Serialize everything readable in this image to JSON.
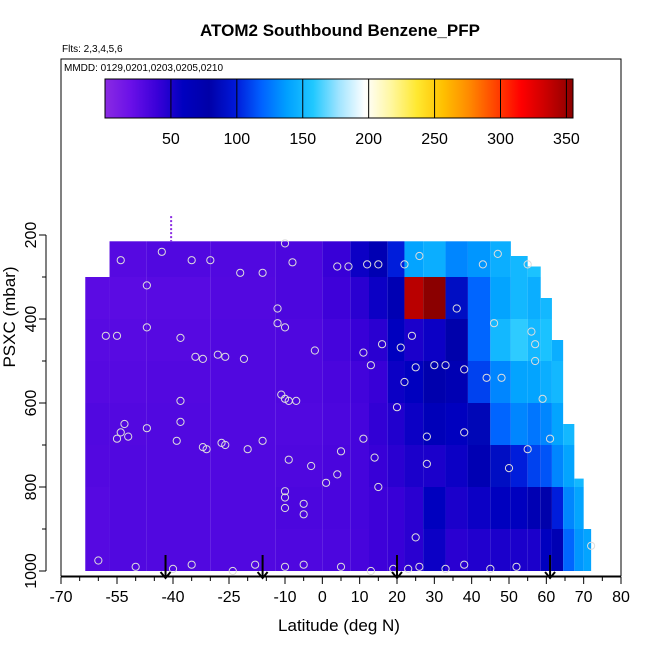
{
  "chart_data": {
    "type": "heatmap",
    "title": "ATOM2 Southbound Benzene_PFP",
    "notes": {
      "flights": "Flts: 2,3,4,5,6",
      "dates": "MMDD: 0129,0201,0203,0205,0210"
    },
    "xlabel": "Latitude (deg N)",
    "ylabel": "PSXC (mbar)",
    "xlim": [
      -70,
      80
    ],
    "ylim": [
      1000,
      200
    ],
    "x_ticks": [
      -70,
      -55,
      -40,
      -25,
      -10,
      0,
      10,
      20,
      30,
      40,
      50,
      60,
      70,
      80
    ],
    "x_minor_ticks": [
      -65,
      -60,
      -50,
      -45,
      -35,
      -30,
      -20,
      -15,
      -5,
      5,
      15,
      25,
      35,
      45,
      55,
      65,
      75
    ],
    "y_ticks": [
      200,
      400,
      600,
      800,
      1000
    ],
    "y_minor_ticks": [
      300,
      500,
      700,
      900
    ],
    "colorbar": {
      "range": [
        0,
        355
      ],
      "ticks": [
        50,
        100,
        150,
        200,
        250,
        300,
        350
      ],
      "colors": [
        "#8a2be2",
        "#6a10e8",
        "#3a00d8",
        "#0000c0",
        "#0000a8",
        "#0018d8",
        "#0060ff",
        "#00a0ff",
        "#20c8ff",
        "#a0e4ff",
        "#ffffff",
        "#fff7a0",
        "#ffe830",
        "#ffc000",
        "#ff8a00",
        "#ff4500",
        "#ff0000",
        "#c80000",
        "#8b0000"
      ]
    },
    "column_profiles": [
      {
        "lat": -67,
        "top": 1000,
        "values": [
          30
        ]
      },
      {
        "lat": -60,
        "top": 300,
        "values": [
          28,
          28,
          29,
          30,
          28,
          27,
          26,
          28,
          30
        ]
      },
      {
        "lat": -54,
        "top": 215,
        "values": [
          30,
          30,
          30,
          29,
          28,
          27,
          26,
          28,
          30
        ]
      },
      {
        "lat": -40,
        "top": 215,
        "values": [
          30,
          30,
          30,
          30,
          29,
          28,
          27,
          30,
          31
        ]
      },
      {
        "lat": -20,
        "top": 215,
        "values": [
          30,
          30,
          30,
          30,
          30,
          30,
          29,
          30,
          31
        ]
      },
      {
        "lat": -5,
        "top": 215,
        "values": [
          31,
          32,
          31,
          30,
          31,
          31,
          32,
          32,
          34
        ]
      },
      {
        "lat": 5,
        "top": 215,
        "values": [
          32,
          33,
          33,
          32,
          33,
          35,
          38,
          40,
          45
        ]
      },
      {
        "lat": 10,
        "top": 215,
        "values": [
          34,
          35,
          35,
          35,
          36,
          40,
          45,
          55,
          70
        ]
      },
      {
        "lat": 15,
        "top": 215,
        "values": [
          38,
          38,
          40,
          42,
          40,
          45,
          55,
          70,
          50
        ]
      },
      {
        "lat": 20,
        "top": 215,
        "values": [
          40,
          40,
          45,
          48,
          55,
          60,
          70,
          100,
          70
        ]
      },
      {
        "lat": 24,
        "top": 215,
        "values": [
          45,
          45,
          50,
          55,
          60,
          50,
          340,
          140,
          135
        ]
      },
      {
        "lat": 30,
        "top": 215,
        "values": [
          55,
          60,
          50,
          65,
          75,
          55,
          355,
          145,
          140
        ]
      },
      {
        "lat": 36,
        "top": 215,
        "values": [
          45,
          50,
          55,
          60,
          70,
          80,
          90,
          130,
          135
        ]
      },
      {
        "lat": 42,
        "top": 215,
        "values": [
          48,
          55,
          70,
          85,
          110,
          120,
          120,
          135,
          140
        ]
      },
      {
        "lat": 48,
        "top": 215,
        "values": [
          50,
          60,
          90,
          120,
          130,
          150,
          140,
          145,
          150
        ]
      },
      {
        "lat": 53,
        "top": 250,
        "values": [
          50,
          60,
          100,
          130,
          140,
          160,
          150,
          150,
          160
        ]
      },
      {
        "lat": 57,
        "top": 275,
        "values": [
          50,
          70,
          110,
          125,
          140,
          150,
          145,
          155,
          170
        ]
      },
      {
        "lat": 60,
        "top": 350,
        "values": [
          60,
          80,
          115,
          130,
          145,
          155,
          150,
          160,
          170
        ]
      },
      {
        "lat": 63,
        "top": 450,
        "values": [
          70,
          100,
          130,
          140,
          150,
          145,
          160,
          165
        ]
      },
      {
        "lat": 66,
        "top": 650,
        "values": [
          120,
          130,
          140,
          150,
          160
        ]
      },
      {
        "lat": 69,
        "top": 780,
        "values": [
          135,
          140,
          150
        ]
      },
      {
        "lat": 71,
        "top": 900,
        "values": [
          140,
          150
        ]
      }
    ],
    "sample_points_lat_p": [
      [
        -54,
        260
      ],
      [
        -43,
        240
      ],
      [
        -35,
        260
      ],
      [
        -30,
        260
      ],
      [
        -22,
        290
      ],
      [
        -16,
        290
      ],
      [
        -47,
        320
      ],
      [
        -10,
        220
      ],
      [
        -8,
        265
      ],
      [
        4,
        275
      ],
      [
        7,
        275
      ],
      [
        12,
        270
      ],
      [
        15,
        270
      ],
      [
        22,
        270
      ],
      [
        26,
        250
      ],
      [
        43,
        270
      ],
      [
        47,
        245
      ],
      [
        55,
        270
      ],
      [
        -47,
        420
      ],
      [
        -55,
        440
      ],
      [
        -58,
        440
      ],
      [
        -38,
        445
      ],
      [
        -34,
        490
      ],
      [
        -32,
        495
      ],
      [
        -28,
        485
      ],
      [
        -26,
        490
      ],
      [
        -21,
        495
      ],
      [
        -12,
        375
      ],
      [
        -12,
        410
      ],
      [
        -10,
        420
      ],
      [
        -2,
        475
      ],
      [
        11,
        480
      ],
      [
        13,
        510
      ],
      [
        16,
        460
      ],
      [
        21,
        468
      ],
      [
        24,
        440
      ],
      [
        36,
        375
      ],
      [
        46,
        410
      ],
      [
        56,
        430
      ],
      [
        57,
        460
      ],
      [
        57,
        500
      ],
      [
        22,
        550
      ],
      [
        25,
        515
      ],
      [
        30,
        510
      ],
      [
        33,
        510
      ],
      [
        38,
        520
      ],
      [
        44,
        540
      ],
      [
        48,
        540
      ],
      [
        59,
        590
      ],
      [
        -38,
        595
      ],
      [
        -38,
        645
      ],
      [
        -11,
        580
      ],
      [
        -10,
        590
      ],
      [
        -9,
        595
      ],
      [
        -7,
        595
      ],
      [
        -53,
        650
      ],
      [
        -54,
        670
      ],
      [
        -55,
        685
      ],
      [
        -52,
        680
      ],
      [
        -47,
        660
      ],
      [
        -39,
        690
      ],
      [
        -32,
        705
      ],
      [
        -31,
        710
      ],
      [
        -27,
        695
      ],
      [
        -26,
        700
      ],
      [
        -20,
        710
      ],
      [
        -16,
        690
      ],
      [
        -9,
        735
      ],
      [
        -3,
        750
      ],
      [
        5,
        715
      ],
      [
        4,
        770
      ],
      [
        20,
        610
      ],
      [
        11,
        685
      ],
      [
        14,
        730
      ],
      [
        28,
        680
      ],
      [
        28,
        745
      ],
      [
        38,
        670
      ],
      [
        50,
        755
      ],
      [
        55,
        710
      ],
      [
        61,
        685
      ],
      [
        -10,
        810
      ],
      [
        -5,
        840
      ],
      [
        -10,
        825
      ],
      [
        1,
        790
      ],
      [
        15,
        800
      ],
      [
        -10,
        850
      ],
      [
        -5,
        865
      ],
      [
        25,
        920
      ],
      [
        72,
        940
      ],
      [
        -60,
        975
      ],
      [
        -50,
        990
      ],
      [
        -40,
        995
      ],
      [
        -35,
        985
      ],
      [
        -24,
        1000
      ],
      [
        -18,
        985
      ],
      [
        -10,
        990
      ],
      [
        -5,
        985
      ],
      [
        5,
        990
      ],
      [
        13,
        1000
      ],
      [
        19,
        995
      ],
      [
        23,
        995
      ],
      [
        26,
        990
      ],
      [
        33,
        995
      ],
      [
        38,
        985
      ],
      [
        45,
        995
      ],
      [
        52,
        990
      ]
    ],
    "markers_lat": [
      -42,
      -16,
      20,
      61
    ]
  }
}
